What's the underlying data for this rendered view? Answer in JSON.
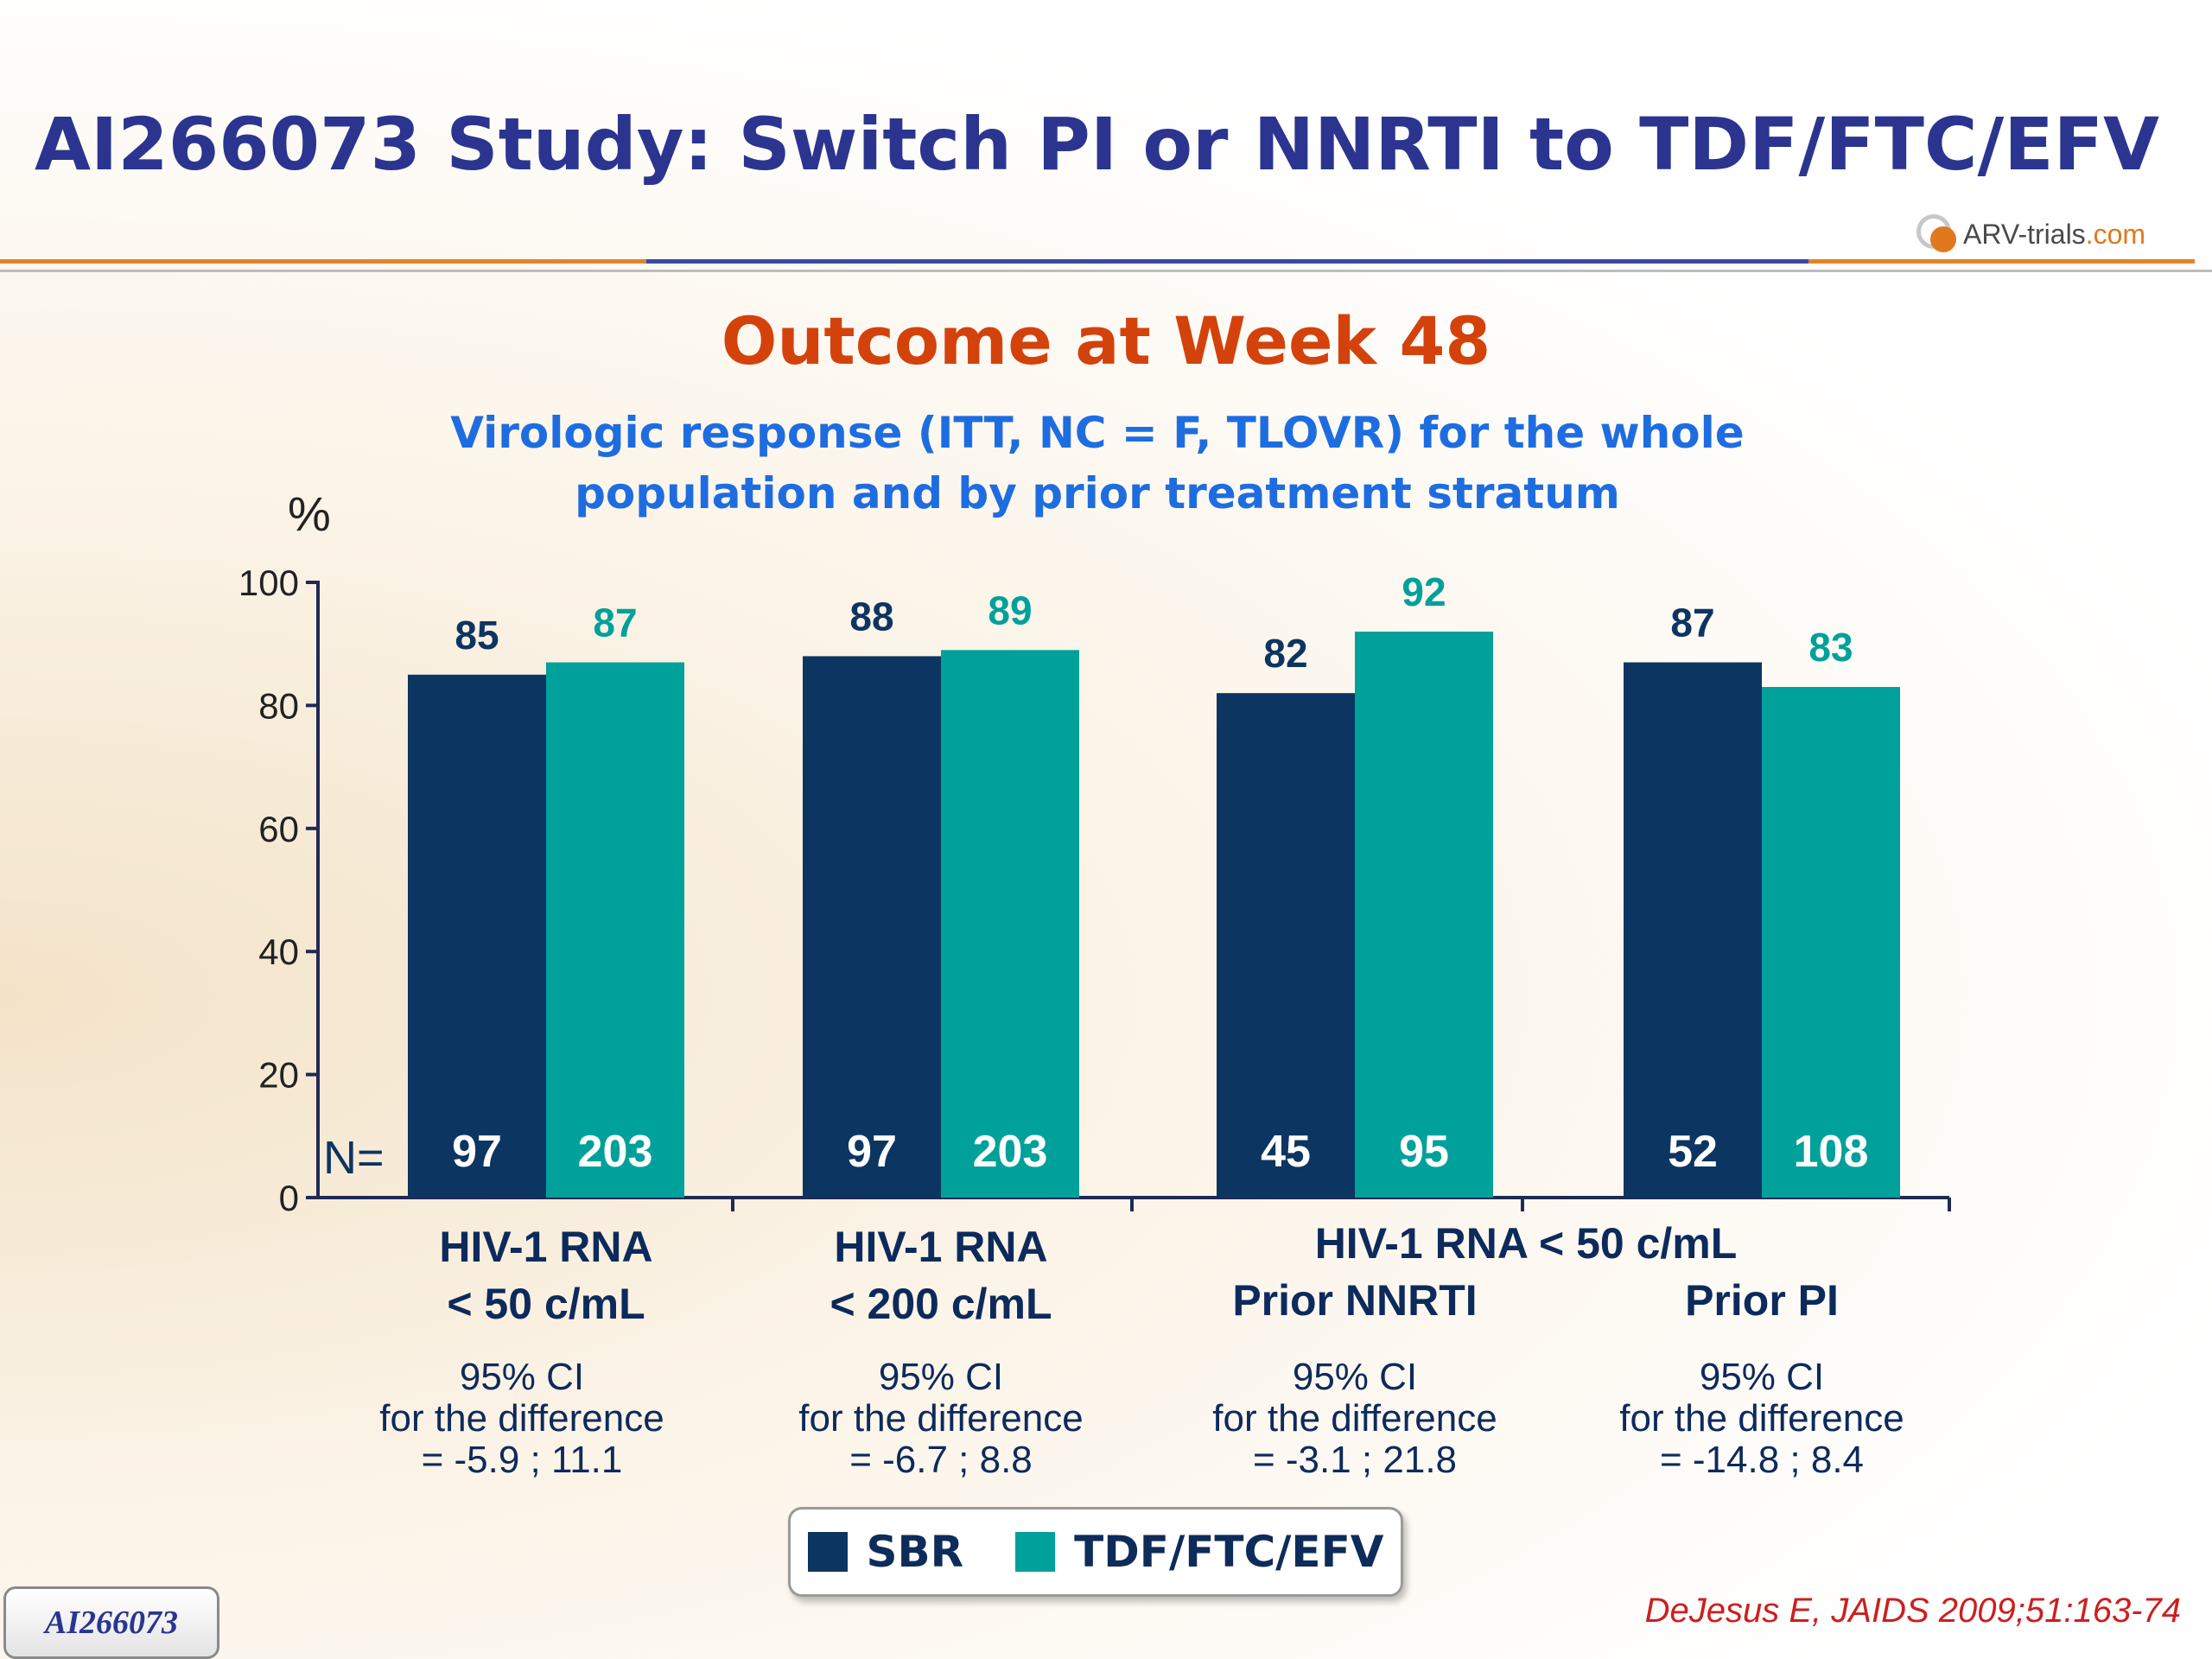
{
  "slide": {
    "title": "AI266073 Study: Switch PI or NNRTI to TDF/FTC/EFV",
    "logo_main": "ARV-trials",
    "logo_suffix": ".com",
    "badge": "AI266073",
    "citation": "DeJesus E, JAIDS 2009;51:163-74"
  },
  "colors": {
    "sbr": "#0d3561",
    "tdf": "#00a19a",
    "title_blue": "#2b3590",
    "chart_title": "#d4420c",
    "subtitle": "#1e6de0"
  },
  "chart_data": {
    "type": "bar",
    "title": "Outcome at Week 48",
    "subtitle": "Virologic response (ITT, NC = F, TLOVR) for the whole population and by prior treatment stratum",
    "ylabel": "%",
    "ylim": [
      0,
      100
    ],
    "yticks": [
      0,
      20,
      40,
      60,
      80,
      100
    ],
    "n_prefix": "N=",
    "categories": [
      "HIV-1 RNA < 50 c/mL",
      "HIV-1 RNA < 200 c/mL",
      "Prior NNRTI",
      "Prior PI"
    ],
    "category_labels": [
      [
        "HIV-1 RNA",
        "< 50 c/mL"
      ],
      [
        "HIV-1 RNA",
        "< 200 c/mL"
      ],
      [
        "Prior NNRTI"
      ],
      [
        "Prior PI"
      ]
    ],
    "group_label": "HIV-1 RNA < 50 c/mL",
    "series": [
      {
        "name": "SBR",
        "values": [
          85,
          88,
          82,
          87
        ],
        "n": [
          97,
          97,
          45,
          52
        ]
      },
      {
        "name": "TDF/FTC/EFV",
        "values": [
          87,
          89,
          92,
          83
        ],
        "n": [
          203,
          203,
          95,
          108
        ]
      }
    ],
    "ci_notes": [
      [
        "95% CI",
        "for the difference",
        "= -5.9 ; 11.1"
      ],
      [
        "95% CI",
        "for the difference",
        "= -6.7 ; 8.8"
      ],
      [
        "95% CI",
        "for the difference",
        "= -3.1 ; 21.8"
      ],
      [
        "95% CI",
        "for the difference",
        "= -14.8 ; 8.4"
      ]
    ],
    "legend": [
      "SBR",
      "TDF/FTC/EFV"
    ],
    "legend_position": "bottom-center",
    "grid": false
  }
}
